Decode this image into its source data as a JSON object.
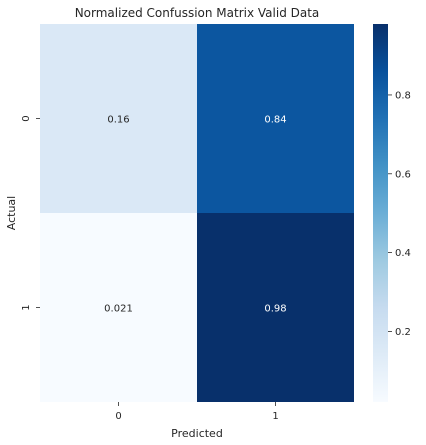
{
  "chart_data": {
    "type": "heatmap",
    "title": "Normalized Confussion Matrix Valid Data",
    "xlabel": "Predicted",
    "ylabel": "Actual",
    "x_categories": [
      "0",
      "1"
    ],
    "y_categories": [
      "0",
      "1"
    ],
    "values": [
      [
        0.16,
        0.84
      ],
      [
        0.021,
        0.98
      ]
    ],
    "cell_labels": [
      [
        "0.16",
        "0.84"
      ],
      [
        "0.021",
        "0.98"
      ]
    ],
    "colormap": "Blues",
    "colorbar": {
      "range": [
        0.021,
        0.98
      ],
      "ticks": [
        0.2,
        0.4,
        0.6,
        0.8
      ],
      "tick_labels": [
        "0.2",
        "0.4",
        "0.6",
        "0.8"
      ]
    },
    "grid": false
  }
}
